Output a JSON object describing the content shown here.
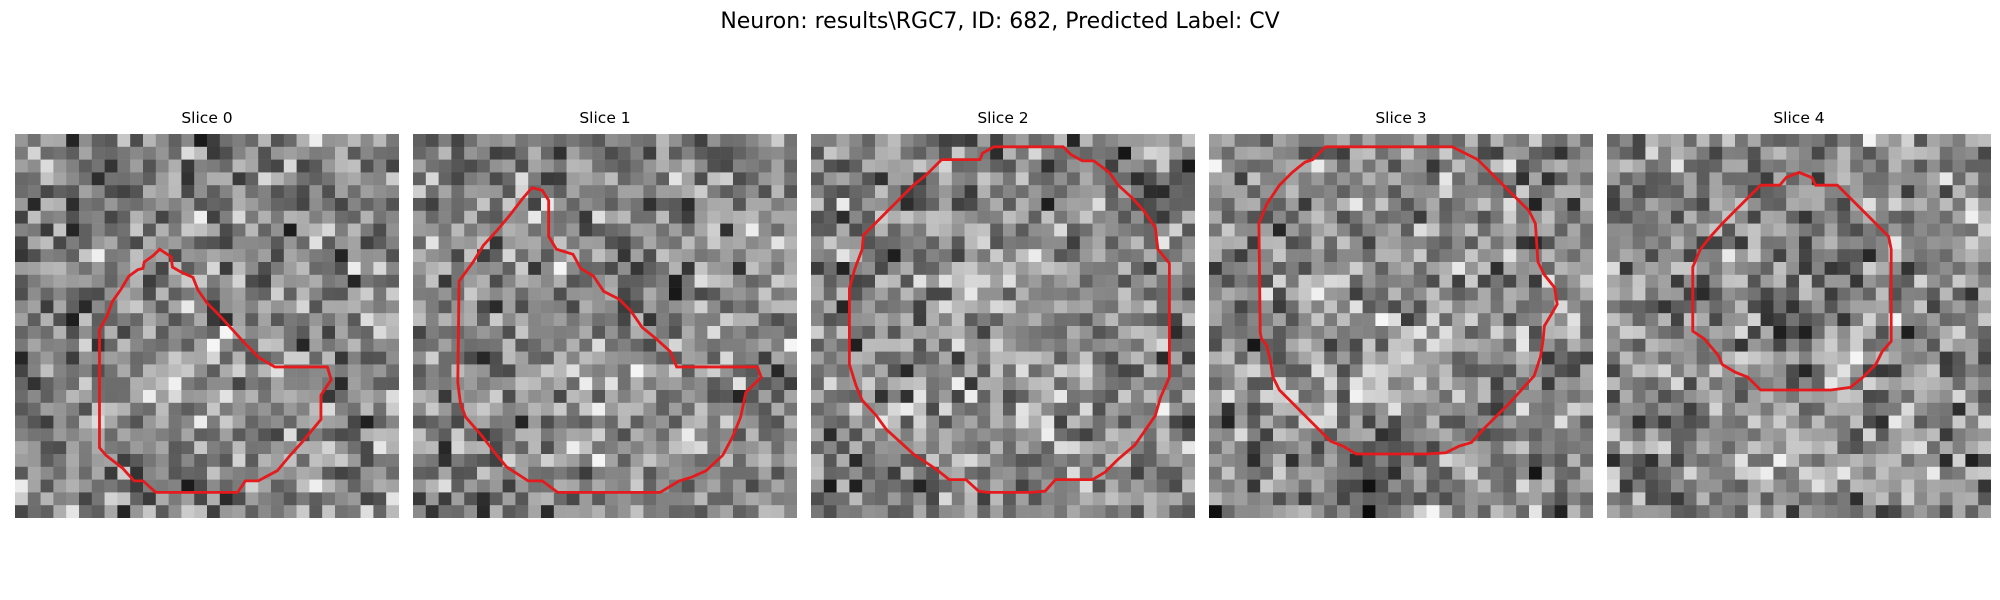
{
  "figure": {
    "title": "Neuron: results\\RGC7, ID: 682, Predicted Label: CV"
  },
  "colors": {
    "contour": "#e41a1c",
    "background": "#ffffff"
  },
  "slices": [
    {
      "label": "Slice 0",
      "seed": 101,
      "bright_blob": [
        0.52,
        0.62
      ],
      "dark_blob": [
        0.2,
        0.18
      ]
    },
    {
      "label": "Slice 1",
      "seed": 202,
      "bright_blob": [
        0.55,
        0.68
      ],
      "dark_blob": [
        0.55,
        0.38
      ]
    },
    {
      "label": "Slice 2",
      "seed": 303,
      "bright_blob": [
        0.5,
        0.5
      ],
      "dark_blob": [
        0.9,
        0.15
      ]
    },
    {
      "label": "Slice 3",
      "seed": 404,
      "bright_blob": [
        0.5,
        0.55
      ],
      "dark_blob": [
        0.45,
        0.92
      ]
    },
    {
      "label": "Slice 4",
      "seed": 505,
      "bright_blob": [
        0.5,
        0.8
      ],
      "dark_blob": [
        0.5,
        0.48
      ]
    }
  ]
}
